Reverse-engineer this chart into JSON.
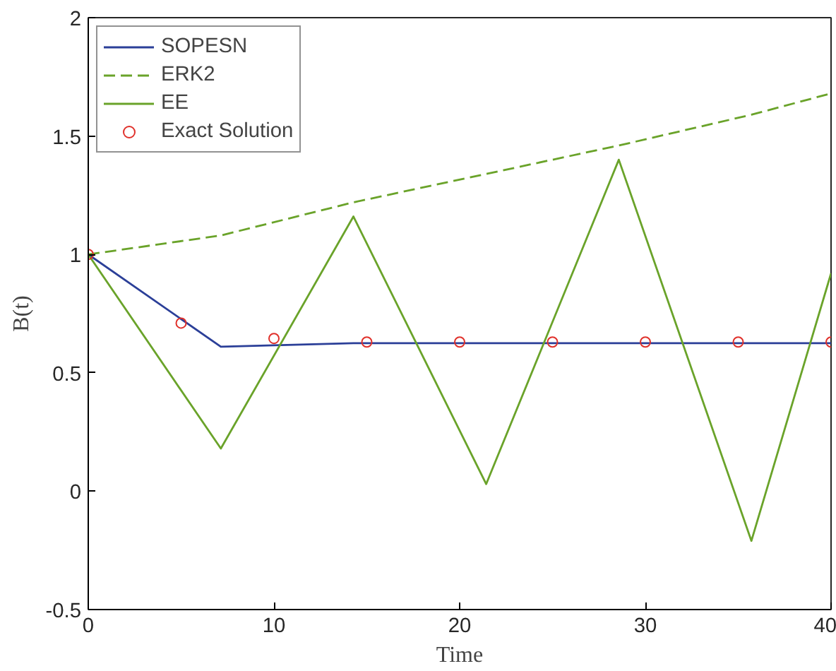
{
  "chart_data": {
    "type": "line",
    "xlabel": "Time",
    "ylabel": "B(t)",
    "xlim": [
      0,
      40
    ],
    "ylim": [
      -0.5,
      2
    ],
    "xticks": [
      0,
      10,
      20,
      30,
      40
    ],
    "yticks": [
      -0.5,
      0,
      0.5,
      1,
      1.5,
      2
    ],
    "grid": false,
    "legend": "top left",
    "series": [
      {
        "name": "SOPESN",
        "color": "#2b3f98",
        "line_style": "solid",
        "x": [
          0,
          7.14,
          14.28,
          40
        ],
        "values": [
          1,
          0.61,
          0.625,
          0.625
        ]
      },
      {
        "name": "ERK2",
        "color": "#6aa32a",
        "line_style": "dashed",
        "x": [
          0,
          7.14,
          14.28,
          21.43,
          28.57,
          35.71,
          40
        ],
        "values": [
          1,
          1.08,
          1.22,
          1.34,
          1.46,
          1.59,
          1.68
        ]
      },
      {
        "name": "EE",
        "color": "#6aa32a",
        "line_style": "solid",
        "x": [
          0,
          7.14,
          14.28,
          21.43,
          28.57,
          35.71,
          40
        ],
        "values": [
          1,
          0.18,
          1.16,
          0.03,
          1.4,
          -0.21,
          0.92
        ]
      },
      {
        "name": "Exact Solution",
        "type": "scatter",
        "marker": "circle",
        "color": "#e0302a",
        "x": [
          0,
          5,
          10,
          15,
          20,
          25,
          30,
          35,
          40
        ],
        "values": [
          1,
          0.71,
          0.645,
          0.63,
          0.63,
          0.63,
          0.63,
          0.63,
          0.63
        ]
      }
    ]
  }
}
